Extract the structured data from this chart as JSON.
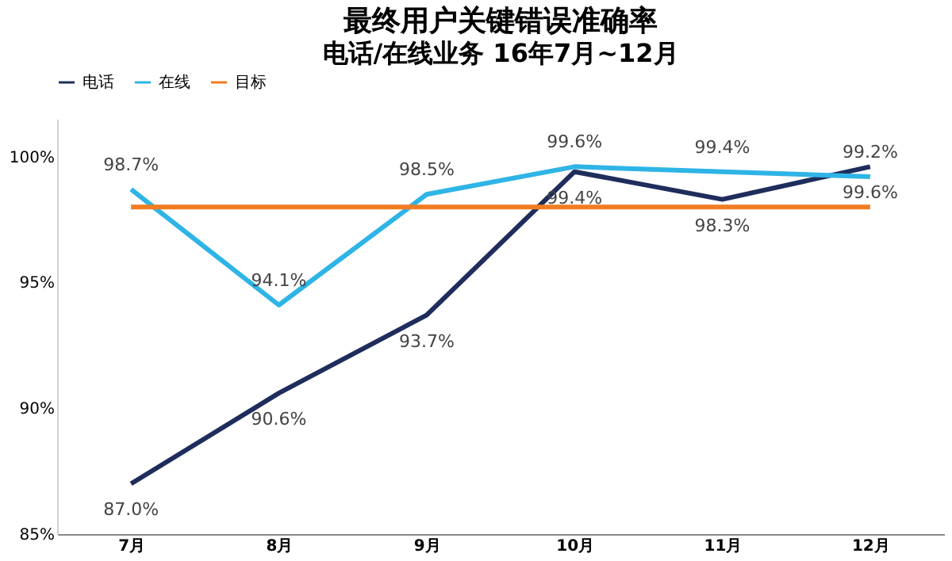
{
  "chart_data": {
    "type": "line",
    "title": "最终用户关键错误准确率",
    "subtitle": "电话/在线业务 16年7月~12月",
    "categories": [
      "7月",
      "8月",
      "9月",
      "10月",
      "11月",
      "12月"
    ],
    "series": [
      {
        "name": "电话",
        "color": "#1f2d5c",
        "values": [
          87.0,
          90.6,
          93.7,
          99.4,
          98.3,
          99.6
        ],
        "value_labels": [
          "87.0%",
          "90.6%",
          "93.7%",
          "99.4%",
          "98.3%",
          "99.6%"
        ]
      },
      {
        "name": "在线",
        "color": "#2fb4e6",
        "values": [
          98.7,
          94.1,
          98.5,
          99.6,
          99.4,
          99.2
        ],
        "value_labels": [
          "98.7%",
          "94.1%",
          "98.5%",
          "99.6%",
          "99.4%",
          "99.2%"
        ]
      },
      {
        "name": "目标",
        "color": "#f07c22",
        "values": [
          98,
          98,
          98,
          98,
          98,
          98
        ]
      }
    ],
    "ylim": [
      85,
      101.5
    ],
    "yticks": [
      {
        "value": 85,
        "label": "85%"
      },
      {
        "value": 90,
        "label": "90%"
      },
      {
        "value": 95,
        "label": "95%"
      },
      {
        "value": 100,
        "label": "100%"
      }
    ],
    "legend": "top",
    "grid": false,
    "marker": "none",
    "line_style": "solid"
  }
}
